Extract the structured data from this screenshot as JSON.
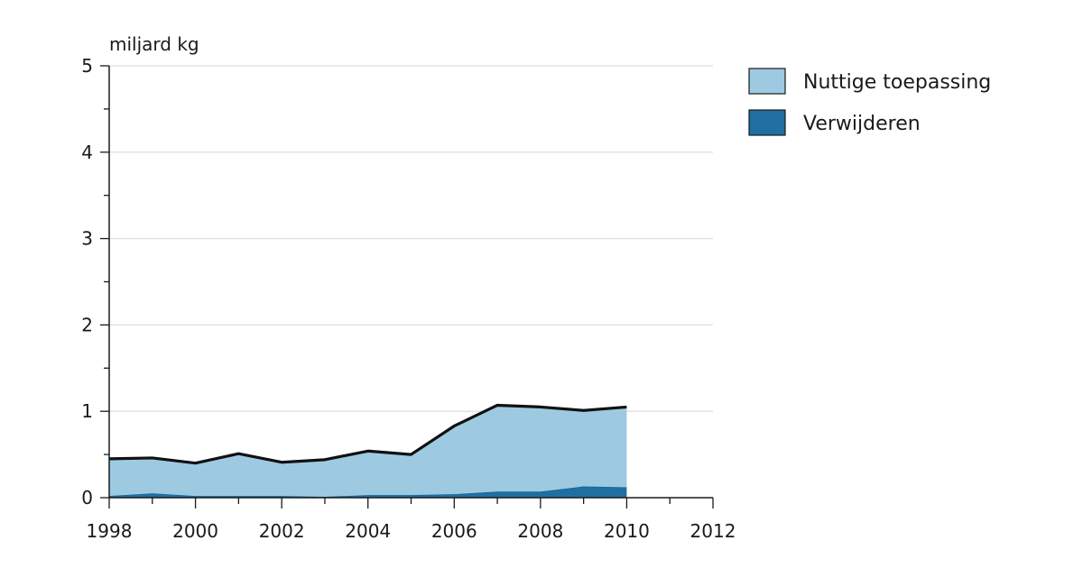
{
  "chart_data": {
    "type": "area",
    "stacked": true,
    "ylabel": "miljard kg",
    "xlim": [
      1998,
      2012
    ],
    "ylim": [
      0,
      5
    ],
    "xticks": [
      1998,
      2000,
      2002,
      2004,
      2006,
      2008,
      2010,
      2012
    ],
    "yticks": [
      0,
      1,
      2,
      3,
      4,
      5
    ],
    "grid": true,
    "legend_position": "right",
    "x": [
      1998,
      1999,
      2000,
      2001,
      2002,
      2003,
      2004,
      2005,
      2006,
      2007,
      2008,
      2009,
      2010
    ],
    "series": [
      {
        "name": "Verwijderen",
        "color": "#1f6fa3",
        "values": [
          0.02,
          0.05,
          0.02,
          0.02,
          0.02,
          0.01,
          0.03,
          0.03,
          0.04,
          0.07,
          0.07,
          0.13,
          0.12
        ]
      },
      {
        "name": "Nuttige toepassing",
        "color": "#9ecae1",
        "values": [
          0.43,
          0.41,
          0.38,
          0.49,
          0.39,
          0.43,
          0.51,
          0.47,
          0.79,
          1.0,
          0.98,
          0.88,
          0.93
        ]
      }
    ],
    "total_line_color": "#111111"
  },
  "legend": {
    "items": [
      {
        "label": "Nuttige toepassing",
        "color": "#9ecae1"
      },
      {
        "label": "Verwijderen",
        "color": "#1f6fa3"
      }
    ]
  }
}
